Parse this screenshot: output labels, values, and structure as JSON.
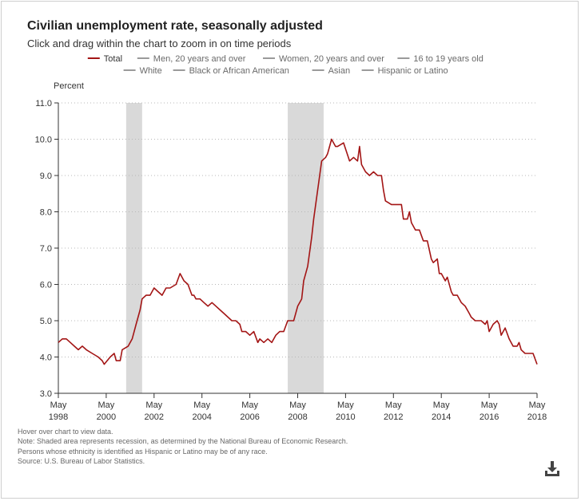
{
  "title": "Civilian unemployment rate, seasonally adjusted",
  "subtitle": "Click and drag within the chart to zoom in on time periods",
  "notes": [
    "Hover over chart to view data.",
    "Note: Shaded area represents recession, as determined by the National Bureau of Economic Research.",
    "Persons whose ethnicity is identified as Hispanic or Latino may be of any race.",
    "Source: U.S. Bureau of Labor Statistics."
  ],
  "download_icon": "download-icon",
  "colors": {
    "total": "#a31515",
    "inactive": "#9a9a9a",
    "recession": "#d9d9d9",
    "grid": "#b8b8b8",
    "axis": "#333333"
  },
  "chart_data": {
    "type": "line",
    "title": "Civilian unemployment rate, seasonally adjusted",
    "ylabel": "Percent",
    "xlabel": "",
    "ylim": [
      3.0,
      11.0
    ],
    "xlim": [
      1998.333,
      2018.333
    ],
    "y_ticks": [
      "3.0",
      "4.0",
      "5.0",
      "6.0",
      "7.0",
      "8.0",
      "9.0",
      "10.0",
      "11.0"
    ],
    "x_ticks": [
      {
        "month": "May",
        "year": "1998"
      },
      {
        "month": "May",
        "year": "2000"
      },
      {
        "month": "May",
        "year": "2002"
      },
      {
        "month": "May",
        "year": "2004"
      },
      {
        "month": "May",
        "year": "2006"
      },
      {
        "month": "May",
        "year": "2008"
      },
      {
        "month": "May",
        "year": "2010"
      },
      {
        "month": "May",
        "year": "2012"
      },
      {
        "month": "May",
        "year": "2014"
      },
      {
        "month": "May",
        "year": "2016"
      },
      {
        "month": "May",
        "year": "2018"
      }
    ],
    "grid": true,
    "legend": [
      {
        "label": "Total",
        "active": true
      },
      {
        "label": "Men, 20 years and over",
        "active": false
      },
      {
        "label": "Women, 20 years and over",
        "active": false
      },
      {
        "label": "16 to 19 years old",
        "active": false
      },
      {
        "label": "White",
        "active": false
      },
      {
        "label": "Black or African American",
        "active": false
      },
      {
        "label": "Asian",
        "active": false
      },
      {
        "label": "Hispanic or Latino",
        "active": false
      }
    ],
    "legend_position": "top-center",
    "recessions": [
      [
        2001.167,
        2001.833
      ],
      [
        2007.917,
        2009.417
      ]
    ],
    "series": [
      {
        "name": "Total",
        "points": [
          [
            1998.333,
            4.4
          ],
          [
            1998.5,
            4.5
          ],
          [
            1998.667,
            4.5
          ],
          [
            1998.833,
            4.4
          ],
          [
            1999.0,
            4.3
          ],
          [
            1999.167,
            4.2
          ],
          [
            1999.333,
            4.3
          ],
          [
            1999.5,
            4.2
          ],
          [
            1999.75,
            4.1
          ],
          [
            2000.0,
            4.0
          ],
          [
            2000.167,
            3.9
          ],
          [
            2000.25,
            3.8
          ],
          [
            2000.5,
            4.0
          ],
          [
            2000.667,
            4.1
          ],
          [
            2000.75,
            3.9
          ],
          [
            2000.917,
            3.9
          ],
          [
            2001.0,
            4.2
          ],
          [
            2001.25,
            4.3
          ],
          [
            2001.417,
            4.5
          ],
          [
            2001.583,
            4.9
          ],
          [
            2001.75,
            5.3
          ],
          [
            2001.833,
            5.6
          ],
          [
            2002.0,
            5.7
          ],
          [
            2002.167,
            5.7
          ],
          [
            2002.333,
            5.9
          ],
          [
            2002.5,
            5.8
          ],
          [
            2002.667,
            5.7
          ],
          [
            2002.833,
            5.9
          ],
          [
            2003.0,
            5.9
          ],
          [
            2003.25,
            6.0
          ],
          [
            2003.417,
            6.3
          ],
          [
            2003.583,
            6.1
          ],
          [
            2003.75,
            6.0
          ],
          [
            2003.917,
            5.7
          ],
          [
            2004.0,
            5.7
          ],
          [
            2004.083,
            5.6
          ],
          [
            2004.25,
            5.6
          ],
          [
            2004.417,
            5.5
          ],
          [
            2004.583,
            5.4
          ],
          [
            2004.75,
            5.5
          ],
          [
            2004.917,
            5.4
          ],
          [
            2005.083,
            5.3
          ],
          [
            2005.25,
            5.2
          ],
          [
            2005.417,
            5.1
          ],
          [
            2005.583,
            5.0
          ],
          [
            2005.75,
            5.0
          ],
          [
            2005.917,
            4.9
          ],
          [
            2006.0,
            4.7
          ],
          [
            2006.167,
            4.7
          ],
          [
            2006.333,
            4.6
          ],
          [
            2006.5,
            4.7
          ],
          [
            2006.667,
            4.4
          ],
          [
            2006.75,
            4.5
          ],
          [
            2006.917,
            4.4
          ],
          [
            2007.083,
            4.5
          ],
          [
            2007.25,
            4.4
          ],
          [
            2007.417,
            4.6
          ],
          [
            2007.583,
            4.7
          ],
          [
            2007.75,
            4.7
          ],
          [
            2007.917,
            5.0
          ],
          [
            2008.0,
            5.0
          ],
          [
            2008.167,
            5.0
          ],
          [
            2008.333,
            5.4
          ],
          [
            2008.5,
            5.6
          ],
          [
            2008.583,
            6.1
          ],
          [
            2008.75,
            6.5
          ],
          [
            2008.917,
            7.3
          ],
          [
            2009.0,
            7.8
          ],
          [
            2009.167,
            8.6
          ],
          [
            2009.333,
            9.4
          ],
          [
            2009.5,
            9.5
          ],
          [
            2009.583,
            9.6
          ],
          [
            2009.75,
            10.0
          ],
          [
            2009.833,
            9.9
          ],
          [
            2009.917,
            9.8
          ],
          [
            2010.0,
            9.8
          ],
          [
            2010.25,
            9.9
          ],
          [
            2010.5,
            9.4
          ],
          [
            2010.667,
            9.5
          ],
          [
            2010.833,
            9.4
          ],
          [
            2010.917,
            9.8
          ],
          [
            2011.0,
            9.3
          ],
          [
            2011.167,
            9.1
          ],
          [
            2011.333,
            9.0
          ],
          [
            2011.5,
            9.1
          ],
          [
            2011.667,
            9.0
          ],
          [
            2011.833,
            9.0
          ],
          [
            2011.917,
            8.6
          ],
          [
            2012.0,
            8.3
          ],
          [
            2012.25,
            8.2
          ],
          [
            2012.5,
            8.2
          ],
          [
            2012.667,
            8.2
          ],
          [
            2012.75,
            7.8
          ],
          [
            2012.917,
            7.8
          ],
          [
            2013.0,
            8.0
          ],
          [
            2013.083,
            7.7
          ],
          [
            2013.25,
            7.5
          ],
          [
            2013.417,
            7.5
          ],
          [
            2013.583,
            7.2
          ],
          [
            2013.75,
            7.2
          ],
          [
            2013.917,
            6.7
          ],
          [
            2014.0,
            6.6
          ],
          [
            2014.167,
            6.7
          ],
          [
            2014.25,
            6.3
          ],
          [
            2014.333,
            6.3
          ],
          [
            2014.5,
            6.1
          ],
          [
            2014.583,
            6.2
          ],
          [
            2014.75,
            5.8
          ],
          [
            2014.833,
            5.7
          ],
          [
            2015.0,
            5.7
          ],
          [
            2015.167,
            5.5
          ],
          [
            2015.333,
            5.4
          ],
          [
            2015.5,
            5.2
          ],
          [
            2015.583,
            5.1
          ],
          [
            2015.75,
            5.0
          ],
          [
            2015.917,
            5.0
          ],
          [
            2016.0,
            5.0
          ],
          [
            2016.167,
            4.9
          ],
          [
            2016.25,
            5.0
          ],
          [
            2016.333,
            4.7
          ],
          [
            2016.5,
            4.9
          ],
          [
            2016.667,
            5.0
          ],
          [
            2016.75,
            4.9
          ],
          [
            2016.833,
            4.6
          ],
          [
            2016.917,
            4.7
          ],
          [
            2017.0,
            4.8
          ],
          [
            2017.167,
            4.5
          ],
          [
            2017.333,
            4.3
          ],
          [
            2017.5,
            4.3
          ],
          [
            2017.583,
            4.4
          ],
          [
            2017.667,
            4.2
          ],
          [
            2017.833,
            4.1
          ],
          [
            2018.0,
            4.1
          ],
          [
            2018.167,
            4.1
          ],
          [
            2018.333,
            3.8
          ]
        ]
      }
    ]
  }
}
